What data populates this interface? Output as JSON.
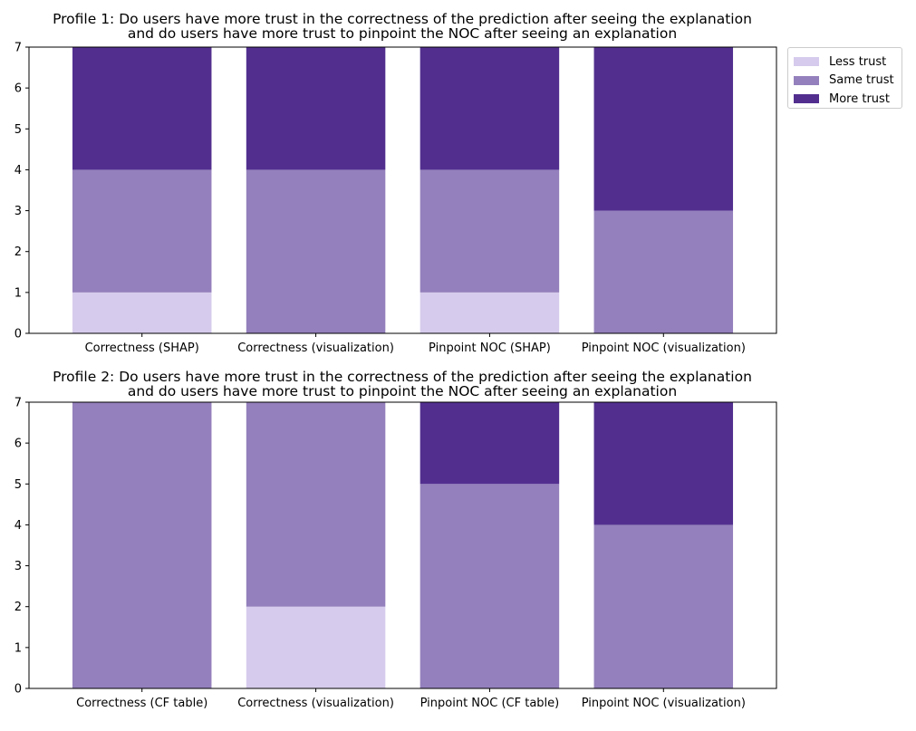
{
  "chart_data": [
    {
      "type": "bar",
      "stacked": true,
      "title_lines": [
        "Profile 1: Do users have more trust in the correctness of the prediction after seeing the explanation",
        "and do users have more trust to pinpoint the NOC after seeing an explanation"
      ],
      "categories": [
        "Correctness (SHAP)",
        "Correctness (visualization)",
        "Pinpoint NOC (SHAP)",
        "Pinpoint NOC (visualization)"
      ],
      "series": [
        {
          "name": "Less trust",
          "color": "#d6cbec",
          "values": [
            1,
            0,
            1,
            0
          ]
        },
        {
          "name": "Same trust",
          "color": "#9480bc",
          "values": [
            3,
            4,
            3,
            3
          ]
        },
        {
          "name": "More trust",
          "color": "#522f8f",
          "values": [
            3,
            3,
            3,
            4
          ]
        }
      ],
      "ylim": [
        0,
        7
      ],
      "yticks": [
        0,
        1,
        2,
        3,
        4,
        5,
        6,
        7
      ],
      "legend": "upper right, outside plot"
    },
    {
      "type": "bar",
      "stacked": true,
      "title_lines": [
        "Profile 2: Do users have more trust in the correctness of the prediction after seeing the explanation",
        "and do users have more trust to pinpoint the NOC after seeing an explanation"
      ],
      "categories": [
        "Correctness (CF table)",
        "Correctness (visualization)",
        "Pinpoint NOC (CF table)",
        "Pinpoint NOC (visualization)"
      ],
      "series": [
        {
          "name": "Less trust",
          "color": "#d6cbec",
          "values": [
            0,
            2,
            0,
            0
          ]
        },
        {
          "name": "Same trust",
          "color": "#9480bc",
          "values": [
            7,
            5,
            5,
            4
          ]
        },
        {
          "name": "More trust",
          "color": "#522f8f",
          "values": [
            0,
            0,
            2,
            3
          ]
        }
      ],
      "ylim": [
        0,
        7
      ],
      "yticks": [
        0,
        1,
        2,
        3,
        4,
        5,
        6,
        7
      ]
    }
  ]
}
